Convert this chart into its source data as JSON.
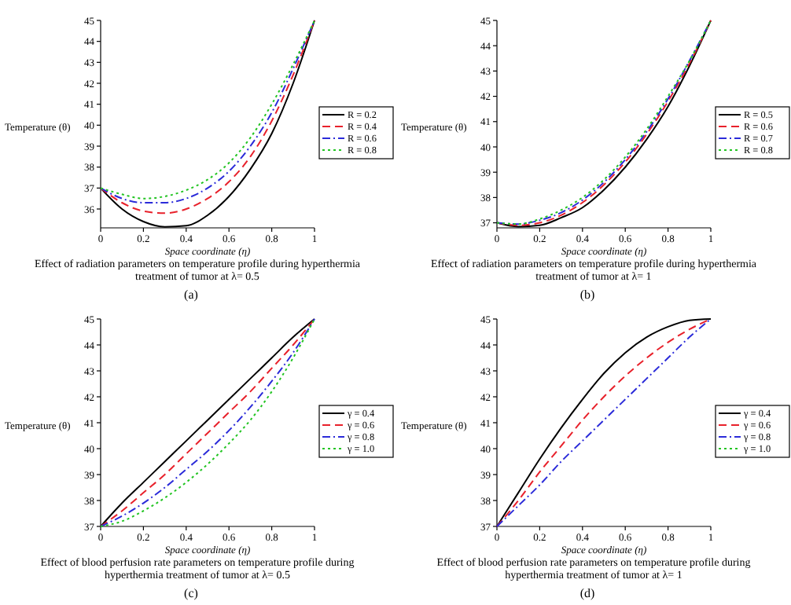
{
  "chart_data": [
    {
      "type": "line",
      "title": "Effect of radiation parameters on temperature profile during hyperthermia treatment of tumor at λ= 0.5",
      "subtitle": "(a)",
      "xlabel": "Space coordinate (η)",
      "ylabel": "Temperature (θ)",
      "x": [
        0,
        0.1,
        0.2,
        0.3,
        0.4,
        0.5,
        0.6,
        0.7,
        0.8,
        0.9,
        1
      ],
      "xlim": [
        0,
        1
      ],
      "xticks": [
        0,
        0.2,
        0.4,
        0.6,
        0.8,
        1
      ],
      "ylim": [
        35.1,
        45
      ],
      "yticks": [
        36,
        37,
        38,
        39,
        40,
        41,
        42,
        43,
        44,
        45
      ],
      "legend": "right",
      "grid": false,
      "series": [
        {
          "name": "R = 0.2",
          "color": "#000000",
          "line_style": "solid",
          "values": [
            37,
            36,
            35.4,
            35.15,
            35.2,
            35.7,
            36.6,
            37.9,
            39.6,
            42,
            45
          ]
        },
        {
          "name": "R = 0.4",
          "color": "#e8212b",
          "line_style": "dashed",
          "values": [
            37,
            36.3,
            35.9,
            35.8,
            36,
            36.5,
            37.3,
            38.5,
            40.2,
            42.4,
            45
          ]
        },
        {
          "name": "R = 0.6",
          "color": "#2b2bd9",
          "line_style": "dashdot",
          "values": [
            37,
            36.5,
            36.3,
            36.3,
            36.5,
            37,
            37.8,
            39,
            40.6,
            42.7,
            45
          ]
        },
        {
          "name": "R = 0.8",
          "color": "#22c422",
          "line_style": "dotted",
          "values": [
            37,
            36.7,
            36.5,
            36.6,
            36.9,
            37.4,
            38.2,
            39.4,
            41,
            42.9,
            45
          ]
        }
      ]
    },
    {
      "type": "line",
      "title": "Effect of radiation parameters on temperature profile during hyperthermia treatment of tumor at λ= 1",
      "subtitle": "(b)",
      "xlabel": "Space coordinate (η)",
      "ylabel": "Temperature (θ)",
      "x": [
        0,
        0.1,
        0.2,
        0.3,
        0.4,
        0.5,
        0.6,
        0.7,
        0.8,
        0.9,
        1
      ],
      "xlim": [
        0,
        1
      ],
      "xticks": [
        0,
        0.2,
        0.4,
        0.6,
        0.8,
        1
      ],
      "ylim": [
        36.8,
        45
      ],
      "yticks": [
        37,
        38,
        39,
        40,
        41,
        42,
        43,
        44,
        45
      ],
      "legend": "right",
      "grid": false,
      "series": [
        {
          "name": "R = 0.5",
          "color": "#000000",
          "line_style": "solid",
          "values": [
            37,
            36.85,
            36.9,
            37.2,
            37.6,
            38.3,
            39.2,
            40.3,
            41.6,
            43.2,
            45
          ]
        },
        {
          "name": "R = 0.6",
          "color": "#e8212b",
          "line_style": "dashed",
          "values": [
            37,
            36.9,
            37,
            37.3,
            37.8,
            38.5,
            39.4,
            40.5,
            41.8,
            43.3,
            45
          ]
        },
        {
          "name": "R = 0.7",
          "color": "#2b2bd9",
          "line_style": "dashdot",
          "values": [
            37,
            36.95,
            37.1,
            37.4,
            37.9,
            38.6,
            39.5,
            40.6,
            41.9,
            43.4,
            45
          ]
        },
        {
          "name": "R = 0.8",
          "color": "#22c422",
          "line_style": "dotted",
          "values": [
            37,
            36.95,
            37.15,
            37.5,
            38,
            38.7,
            39.6,
            40.7,
            42,
            43.4,
            45
          ]
        }
      ]
    },
    {
      "type": "line",
      "title": "Effect of  blood perfusion rate parameters on temperature profile during hyperthermia treatment of tumor at λ= 0.5",
      "subtitle": "(c)",
      "xlabel": "Space coordinate (η)",
      "ylabel": "Temperature (θ)",
      "x": [
        0,
        0.1,
        0.2,
        0.3,
        0.4,
        0.5,
        0.6,
        0.7,
        0.8,
        0.9,
        1
      ],
      "xlim": [
        0,
        1
      ],
      "xticks": [
        0,
        0.2,
        0.4,
        0.6,
        0.8,
        1
      ],
      "ylim": [
        37,
        45
      ],
      "yticks": [
        37,
        38,
        39,
        40,
        41,
        42,
        43,
        44,
        45
      ],
      "legend": "right",
      "grid": false,
      "series": [
        {
          "name": "γ = 0.4",
          "color": "#000000",
          "line_style": "solid",
          "values": [
            37,
            37.9,
            38.7,
            39.5,
            40.3,
            41.1,
            41.9,
            42.7,
            43.5,
            44.3,
            45
          ]
        },
        {
          "name": "γ = 0.6",
          "color": "#e8212b",
          "line_style": "dashed",
          "values": [
            37,
            37.6,
            38.3,
            39,
            39.8,
            40.6,
            41.4,
            42.2,
            43.1,
            44,
            45
          ]
        },
        {
          "name": "γ = 0.8",
          "color": "#2b2bd9",
          "line_style": "dashdot",
          "values": [
            37,
            37.4,
            37.9,
            38.5,
            39.2,
            39.9,
            40.7,
            41.6,
            42.6,
            43.7,
            45
          ]
        },
        {
          "name": "γ = 1.0",
          "color": "#22c422",
          "line_style": "dotted",
          "values": [
            37,
            37.2,
            37.6,
            38.1,
            38.7,
            39.4,
            40.2,
            41.1,
            42.2,
            43.5,
            45
          ]
        }
      ]
    },
    {
      "type": "line",
      "title": "Effect of  blood perfusion rate parameters on temperature profile during hyperthermia treatment of tumor at λ= 1",
      "subtitle": "(d)",
      "xlabel": "Space coordinate (η)",
      "ylabel": "Temperature (θ)",
      "x": [
        0,
        0.1,
        0.2,
        0.3,
        0.4,
        0.5,
        0.6,
        0.7,
        0.8,
        0.9,
        1
      ],
      "xlim": [
        0,
        1
      ],
      "xticks": [
        0,
        0.2,
        0.4,
        0.6,
        0.8,
        1
      ],
      "ylim": [
        37,
        45
      ],
      "yticks": [
        37,
        38,
        39,
        40,
        41,
        42,
        43,
        44,
        45
      ],
      "legend": "right",
      "grid": false,
      "series": [
        {
          "name": "γ = 0.4",
          "color": "#000000",
          "line_style": "solid",
          "values": [
            37,
            38.3,
            39.6,
            40.8,
            41.9,
            42.9,
            43.7,
            44.3,
            44.7,
            44.95,
            45
          ]
        },
        {
          "name": "γ = 0.6",
          "color": "#e8212b",
          "line_style": "dashed",
          "values": [
            37,
            38,
            39.1,
            40.1,
            41.1,
            42,
            42.8,
            43.5,
            44.1,
            44.6,
            45
          ]
        },
        {
          "name": "γ = 0.8",
          "color": "#2b2bd9",
          "line_style": "dashdot",
          "values": [
            37,
            37.8,
            38.6,
            39.5,
            40.3,
            41.1,
            41.9,
            42.7,
            43.5,
            44.3,
            45
          ]
        },
        {
          "name": "γ = 1.0",
          "color": "#22c422",
          "line_style": "dotted",
          "values": [
            null,
            null,
            null,
            null,
            null,
            null,
            null,
            null,
            null,
            null,
            null
          ]
        }
      ]
    }
  ]
}
